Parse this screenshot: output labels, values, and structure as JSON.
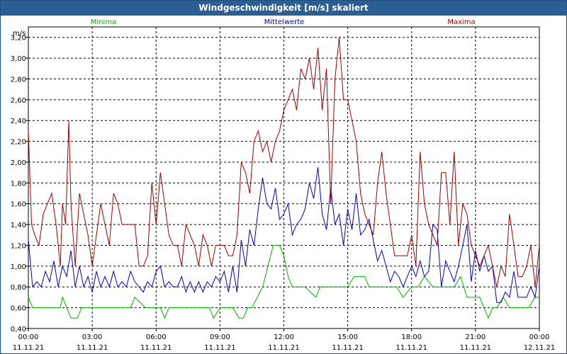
{
  "window": {
    "title": "Windgeschwindigkeit [m/s] skaliert"
  },
  "chart_data": {
    "type": "line",
    "title": "Windgeschwindigkeit [m/s] skaliert",
    "ylabel": "m/s",
    "xlabel": "",
    "ylim": [
      0.4,
      3.3
    ],
    "yticks": [
      "0,40",
      "0,60",
      "0,80",
      "1,00",
      "1,20",
      "1,40",
      "1,60",
      "1,80",
      "2,00",
      "2,20",
      "2,40",
      "2,60",
      "2,80",
      "3,00",
      "3,20"
    ],
    "xticks": [
      {
        "time": "00:00",
        "date": "11.11.21"
      },
      {
        "time": "03:00",
        "date": "11.11.21"
      },
      {
        "time": "06:00",
        "date": "11.11.21"
      },
      {
        "time": "09:00",
        "date": "11.11.21"
      },
      {
        "time": "12:00",
        "date": "11.11.21"
      },
      {
        "time": "15:00",
        "date": "11.11.21"
      },
      {
        "time": "18:00",
        "date": "11.11.21"
      },
      {
        "time": "21:00",
        "date": "11.11.21"
      },
      {
        "time": "00:00",
        "date": "12.11.21"
      }
    ],
    "xlim_hours": [
      0,
      24
    ],
    "grid": true,
    "legend": [
      "Minima",
      "Mittelwerte",
      "Maxima"
    ],
    "series": [
      {
        "name": "Minima",
        "color": "#00b000",
        "x": [
          0,
          0.2,
          0.5,
          1,
          1.5,
          1.6,
          1.8,
          2,
          2.3,
          2.5,
          3,
          3.5,
          4,
          4.5,
          4.8,
          5,
          5.5,
          6,
          6.2,
          6.4,
          6.6,
          7,
          7.5,
          8,
          8.5,
          8.7,
          9,
          9.3,
          9.6,
          9.9,
          10.1,
          10.3,
          10.5,
          11,
          11.5,
          11.8,
          12,
          12.2,
          12.4,
          13,
          13.5,
          13.7,
          14,
          14.5,
          15,
          15.3,
          15.8,
          16,
          16.5,
          16.8,
          17,
          17.3,
          17.6,
          18,
          18.3,
          18.6,
          19,
          19.5,
          20,
          20.3,
          20.6,
          21,
          21.2,
          21.4,
          21.6,
          21.8,
          22,
          22.3,
          22.6,
          23,
          23.5,
          23.8,
          24
        ],
        "values": [
          0.7,
          0.6,
          0.6,
          0.6,
          0.6,
          0.7,
          0.6,
          0.5,
          0.5,
          0.6,
          0.6,
          0.6,
          0.6,
          0.6,
          0.6,
          0.7,
          0.6,
          0.6,
          0.6,
          0.5,
          0.6,
          0.6,
          0.6,
          0.6,
          0.6,
          0.5,
          0.6,
          0.6,
          0.6,
          0.5,
          0.5,
          0.6,
          0.6,
          0.8,
          1.2,
          1.2,
          1.1,
          0.9,
          0.8,
          0.8,
          0.7,
          0.8,
          0.8,
          0.8,
          0.8,
          0.9,
          0.9,
          0.8,
          0.8,
          0.8,
          0.8,
          0.8,
          0.7,
          0.8,
          0.8,
          0.9,
          0.8,
          0.8,
          0.8,
          0.9,
          0.7,
          0.7,
          0.7,
          0.6,
          0.5,
          0.6,
          0.6,
          0.7,
          0.6,
          0.6,
          0.6,
          0.7,
          0.7
        ]
      },
      {
        "name": "Mittelwerte",
        "color": "#0000c0",
        "x": [
          0,
          0.2,
          0.4,
          0.6,
          0.8,
          1,
          1.2,
          1.4,
          1.6,
          1.8,
          2,
          2.2,
          2.4,
          2.6,
          2.8,
          3,
          3.2,
          3.4,
          3.6,
          3.8,
          4,
          4.2,
          4.4,
          4.6,
          4.8,
          5,
          5.2,
          5.4,
          5.6,
          5.8,
          6,
          6.2,
          6.4,
          6.6,
          6.8,
          7,
          7.2,
          7.4,
          7.6,
          7.8,
          8,
          8.2,
          8.4,
          8.6,
          8.8,
          9,
          9.2,
          9.4,
          9.6,
          9.8,
          10,
          10.2,
          10.4,
          10.6,
          10.8,
          11,
          11.2,
          11.4,
          11.6,
          11.8,
          12,
          12.2,
          12.4,
          12.6,
          12.8,
          13,
          13.2,
          13.4,
          13.6,
          13.8,
          14,
          14.2,
          14.4,
          14.6,
          14.8,
          15,
          15.2,
          15.4,
          15.6,
          15.8,
          16,
          16.2,
          16.4,
          16.6,
          16.8,
          17,
          17.2,
          17.4,
          17.6,
          17.8,
          18,
          18.2,
          18.4,
          18.6,
          18.8,
          19,
          19.2,
          19.4,
          19.6,
          19.8,
          20,
          20.2,
          20.4,
          20.6,
          20.8,
          21,
          21.2,
          21.4,
          21.6,
          21.8,
          22,
          22.2,
          22.4,
          22.6,
          22.8,
          23,
          23.2,
          23.4,
          23.6,
          23.8,
          24
        ],
        "values": [
          1.25,
          0.8,
          0.85,
          0.8,
          0.95,
          0.85,
          1.05,
          0.8,
          1.0,
          0.9,
          1.15,
          0.8,
          1.0,
          0.8,
          0.9,
          0.75,
          0.95,
          0.8,
          0.9,
          0.8,
          0.95,
          0.8,
          0.85,
          0.8,
          0.95,
          0.85,
          0.8,
          0.75,
          0.85,
          0.8,
          0.95,
          1.0,
          0.8,
          0.85,
          0.8,
          0.8,
          0.9,
          0.75,
          0.85,
          0.75,
          0.85,
          0.75,
          0.85,
          0.8,
          0.9,
          0.85,
          0.95,
          0.75,
          1.0,
          0.75,
          1.25,
          1.0,
          1.35,
          1.2,
          1.55,
          1.85,
          1.6,
          1.55,
          1.75,
          1.45,
          1.5,
          1.6,
          1.3,
          1.4,
          1.45,
          1.55,
          1.8,
          1.65,
          1.95,
          1.5,
          1.35,
          1.75,
          1.4,
          1.5,
          1.2,
          1.55,
          1.35,
          1.7,
          1.3,
          1.35,
          1.45,
          1.25,
          1.05,
          1.15,
          1.0,
          0.85,
          0.95,
          0.9,
          0.8,
          0.9,
          1.0,
          0.9,
          1.05,
          0.9,
          0.95,
          1.4,
          1.35,
          0.8,
          1.05,
          0.95,
          0.85,
          1.0,
          1.2,
          1.4,
          0.85,
          1.15,
          0.95,
          1.1,
          0.95,
          1.0,
          0.65,
          0.65,
          0.75,
          0.7,
          0.95,
          0.7,
          0.7,
          0.7,
          0.8,
          0.7,
          1.0
        ]
      },
      {
        "name": "Maxima",
        "color": "#a00000",
        "x": [
          0,
          0.15,
          0.3,
          0.5,
          0.7,
          0.9,
          1.1,
          1.3,
          1.5,
          1.6,
          1.75,
          1.9,
          2.0,
          2.2,
          2.4,
          2.6,
          2.8,
          3.0,
          3.2,
          3.4,
          3.6,
          3.8,
          4.0,
          4.2,
          4.4,
          4.6,
          4.8,
          5.0,
          5.2,
          5.4,
          5.6,
          5.8,
          6.0,
          6.2,
          6.4,
          6.6,
          6.8,
          7.0,
          7.2,
          7.4,
          7.6,
          7.8,
          8.0,
          8.2,
          8.4,
          8.6,
          8.8,
          9.0,
          9.2,
          9.4,
          9.6,
          9.8,
          10.0,
          10.2,
          10.4,
          10.6,
          10.8,
          11.0,
          11.2,
          11.4,
          11.6,
          11.8,
          12.0,
          12.2,
          12.4,
          12.6,
          12.8,
          13.0,
          13.2,
          13.4,
          13.6,
          13.8,
          14.0,
          14.2,
          14.4,
          14.6,
          14.8,
          15.0,
          15.2,
          15.4,
          15.6,
          15.8,
          16.0,
          16.2,
          16.4,
          16.6,
          16.8,
          17.0,
          17.2,
          17.4,
          17.6,
          17.8,
          18.0,
          18.2,
          18.4,
          18.6,
          18.8,
          19.0,
          19.2,
          19.4,
          19.6,
          19.8,
          20.0,
          20.2,
          20.4,
          20.6,
          20.8,
          21.0,
          21.2,
          21.4,
          21.6,
          21.8,
          22.0,
          22.2,
          22.4,
          22.6,
          22.8,
          23.0,
          23.2,
          23.4,
          23.6,
          23.8,
          24.0
        ],
        "values": [
          2.3,
          1.4,
          1.3,
          1.2,
          1.5,
          1.6,
          1.7,
          1.4,
          1.0,
          1.6,
          1.4,
          2.4,
          1.6,
          1.0,
          1.7,
          1.5,
          1.3,
          1.0,
          1.3,
          1.6,
          1.4,
          1.2,
          1.7,
          1.6,
          1.4,
          1.4,
          1.4,
          1.4,
          1.0,
          1.0,
          1.1,
          1.8,
          1.4,
          1.9,
          1.6,
          1.3,
          1.2,
          1.2,
          1.0,
          1.4,
          1.3,
          1.2,
          1.0,
          1.3,
          1.2,
          1.0,
          1.2,
          1.2,
          1.2,
          1.1,
          1.1,
          1.3,
          2.0,
          1.9,
          1.7,
          2.2,
          2.3,
          2.1,
          2.2,
          2.0,
          2.2,
          2.3,
          2.5,
          2.6,
          2.7,
          2.5,
          2.9,
          2.8,
          3.0,
          2.7,
          3.1,
          2.5,
          2.9,
          1.6,
          2.8,
          3.2,
          2.6,
          2.6,
          2.4,
          2.2,
          1.7,
          1.5,
          1.4,
          1.3,
          1.8,
          2.1,
          1.7,
          1.4,
          1.1,
          1.1,
          1.1,
          1.1,
          1.3,
          1.0,
          2.1,
          1.6,
          1.4,
          1.3,
          1.2,
          1.9,
          1.9,
          1.4,
          2.1,
          1.2,
          1.6,
          1.5,
          1.2,
          1.1,
          1.0,
          1.1,
          1.2,
          1.0,
          0.8,
          1.0,
          0.9,
          1.5,
          1.2,
          0.9,
          0.9,
          1.0,
          1.2,
          0.8,
          1.2
        ]
      }
    ]
  }
}
